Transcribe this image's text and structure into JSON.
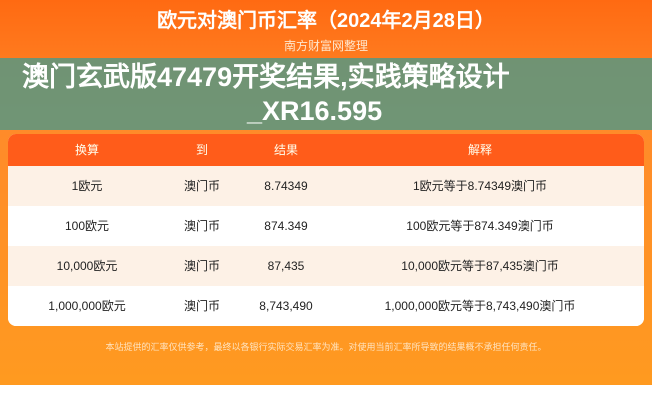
{
  "header": {
    "title": "欧元对澳门币汇率（2024年2月28日）",
    "subtitle": "南方财富网整理"
  },
  "table": {
    "columns": [
      "换算",
      "到",
      "结果",
      "解释"
    ],
    "rows": [
      [
        "1欧元",
        "澳门币",
        "8.74349",
        "1欧元等于8.74349澳门币"
      ],
      [
        "100欧元",
        "澳门币",
        "874.349",
        "100欧元等于874.349澳门币"
      ],
      [
        "10,000欧元",
        "澳门币",
        "87,435",
        "10,000欧元等于87,435澳门币"
      ],
      [
        "1,000,000欧元",
        "澳门币",
        "8,743,490",
        "1,000,000欧元等于8,743,490澳门币"
      ]
    ]
  },
  "footer": "本站提供的汇率仅供参考，最终以各银行实际交易汇率为准。对使用当前汇率所导致的结果概不承担任何责任。",
  "overlay": {
    "line1": "澳门玄武版47479开奖结果,实践策略设计",
    "line2": "_XR16.595"
  }
}
